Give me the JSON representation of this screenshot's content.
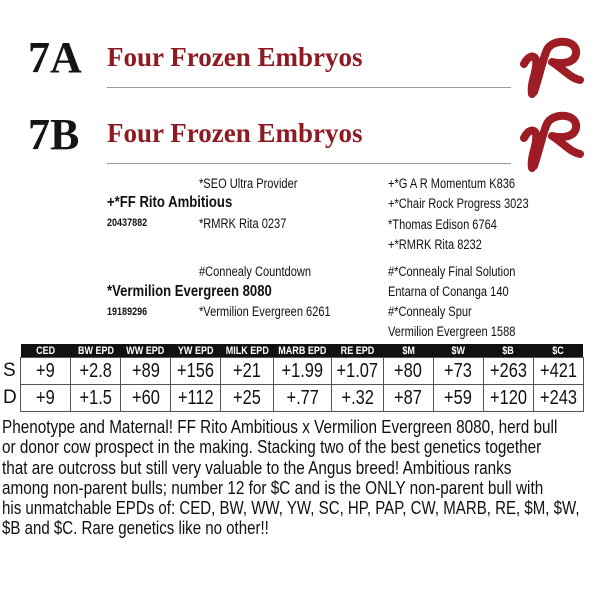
{
  "lots": [
    {
      "number": "7A",
      "title": "Four Frozen Embryos",
      "logo_text": "VR"
    },
    {
      "number": "7B",
      "title": "Four Frozen Embryos",
      "logo_text": "VR"
    }
  ],
  "colors": {
    "title": "#8f1b22",
    "logo": "#9e1c24",
    "table_header": "#111111"
  },
  "pedigree": {
    "sire": {
      "name": "+*FF Rito Ambitious",
      "reg": "20437882",
      "sire": "*SEO Ultra Provider",
      "dam": "*RMRK Rita 0237",
      "grand": [
        "+*G A R Momentum K836",
        "+*Chair Rock Progress 3023",
        "*Thomas Edison 6764",
        "+*RMRK Rita 8232"
      ]
    },
    "dam": {
      "name": "*Vermilion Evergreen 8080",
      "reg": "19189296",
      "sire": "#Connealy Countdown",
      "dam": "*Vermilion Evergreen 6261",
      "grand": [
        "#*Connealy Final Solution",
        "Entarna of Conanga 140",
        "#*Connealy Spur",
        "Vermilion Evergreen 1588"
      ]
    }
  },
  "epd": {
    "headers": [
      "CED",
      "BW EPD",
      "WW EPD",
      "YW EPD",
      "MILK EPD",
      "MARB EPD",
      "RE EPD",
      "$M",
      "$W",
      "$B",
      "$C"
    ],
    "rows": [
      {
        "label": "S",
        "values": [
          "+9",
          "+2.8",
          "+89",
          "+156",
          "+21",
          "+1.99",
          "+1.07",
          "+80",
          "+73",
          "+263",
          "+421"
        ]
      },
      {
        "label": "D",
        "values": [
          "+9",
          "+1.5",
          "+60",
          "+112",
          "+25",
          "+.77",
          "+.32",
          "+87",
          "+59",
          "+120",
          "+243"
        ]
      }
    ]
  },
  "description": [
    "Phenotype and Maternal! FF Rito Ambitious x Vermilion Evergreen 8080, herd bull",
    "or donor cow prospect in the making. Stacking two of the best genetics together",
    "that are outcross but still very valuable to the Angus breed! Ambitious ranks",
    "among non-parent bulls; number 12 for $C and is the ONLY non-parent bull with",
    "his unmatchable EPDs of: CED, BW, WW, YW, SC, HP, PAP, CW, MARB, RE, $M, $W,",
    "$B and $C. Rare genetics like no other!!"
  ]
}
